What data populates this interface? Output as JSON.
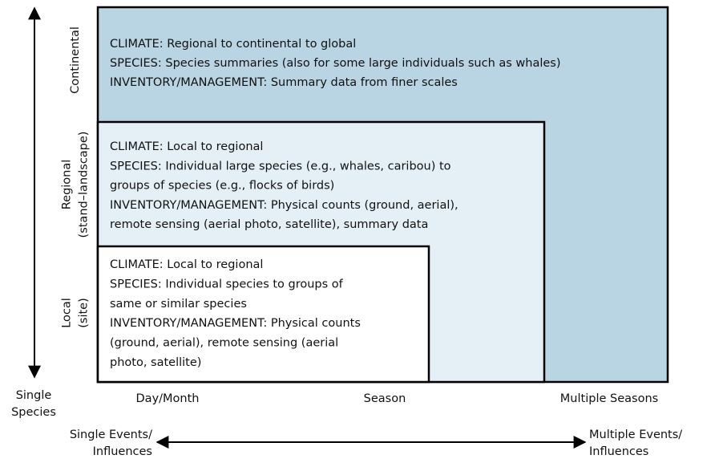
{
  "boxes": [
    {
      "label": [
        "Continental"
      ],
      "lines": [
        "CLIMATE: Regional to continental to global",
        "SPECIES: Species summaries (also for some large individuals such as whales)",
        "INVENTORY/MANAGEMENT: Summary data from finer scales"
      ]
    },
    {
      "label": [
        "Regional",
        "(stand–landscape)"
      ],
      "lines": [
        "CLIMATE: Local to regional",
        "SPECIES: Individual large species (e.g., whales, caribou) to",
        "groups of species (e.g., flocks of birds)",
        "INVENTORY/MANAGEMENT: Physical counts (ground, aerial),",
        "remote sensing (aerial photo, satellite), summary data"
      ]
    },
    {
      "label": [
        "Local",
        "(site)"
      ],
      "lines": [
        "CLIMATE: Local to regional",
        "SPECIES: Individual species to groups of",
        "same or similar species",
        "INVENTORY/MANAGEMENT: Physical counts",
        "(ground, aerial), remote sensing (aerial",
        "photo, satellite)"
      ]
    }
  ],
  "y_axis": {
    "bottom_label": [
      "Single",
      "Species"
    ]
  },
  "x_axis": {
    "categories": [
      "Day/Month",
      "Season",
      "Multiple Seasons"
    ],
    "left_label": [
      "Single Events/",
      "Influences"
    ],
    "right_label": [
      "Multiple Events/",
      "Influences"
    ]
  }
}
